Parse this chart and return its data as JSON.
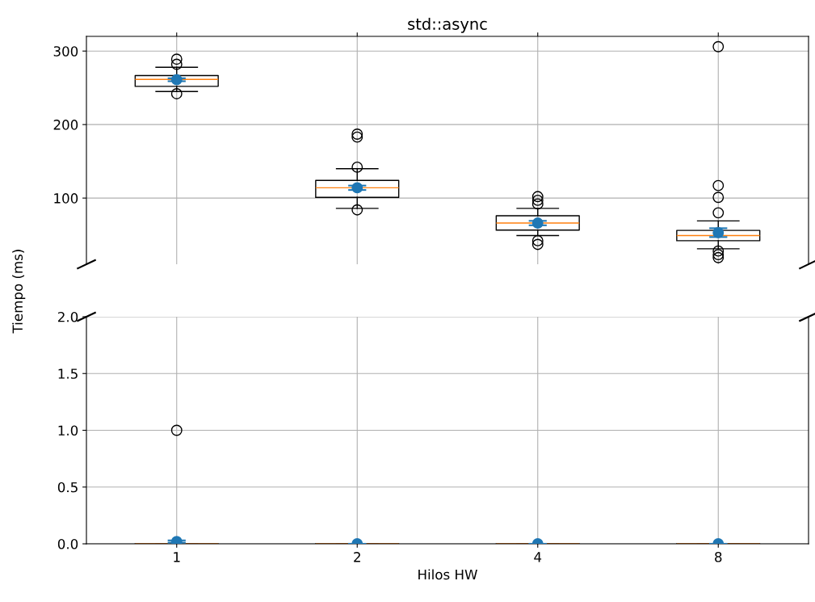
{
  "chart_data": [
    {
      "type": "box",
      "title": "std::async",
      "ylabel": "Tiempo (ms)",
      "categories": [
        "1",
        "2",
        "4",
        "8"
      ],
      "boxes": [
        {
          "low": 245,
          "q1": 252,
          "median": 261.5,
          "q3": 266.7,
          "high": 278,
          "outliers": [
            289,
            282,
            242
          ]
        },
        {
          "low": 86,
          "q1": 101,
          "median": 114,
          "q3": 124,
          "high": 140,
          "outliers": [
            142,
            187,
            183,
            84
          ]
        },
        {
          "low": 49,
          "q1": 56.5,
          "median": 66,
          "q3": 76,
          "high": 86,
          "outliers": [
            102,
            97,
            92,
            42,
            37
          ]
        },
        {
          "low": 31,
          "q1": 42,
          "median": 49,
          "q3": 56,
          "high": 69,
          "outliers": [
            80,
            101,
            117,
            306,
            28,
            23,
            19
          ]
        }
      ],
      "series": [
        {
          "type": "scatter",
          "color": "#1f77b4",
          "x": [
            "1",
            "2",
            "4",
            "8"
          ],
          "values": [
            261,
            114,
            66,
            53
          ],
          "errors": [
            2,
            3,
            3,
            6
          ]
        }
      ],
      "ylim": [
        10,
        320
      ],
      "yticks": [
        100,
        200,
        300
      ],
      "grid": true,
      "marker": "circle",
      "tick_labels": "y"
    },
    {
      "type": "box",
      "xlabel": "Hilos HW",
      "categories": [
        "1",
        "2",
        "4",
        "8"
      ],
      "boxes": [
        {
          "low": 0,
          "q1": 0,
          "median": 0,
          "q3": 0,
          "high": 0,
          "outliers": [
            1.0
          ]
        },
        {
          "low": 0,
          "q1": 0,
          "median": 0,
          "q3": 0,
          "high": 0
        },
        {
          "low": 0,
          "q1": 0,
          "median": 0,
          "q3": 0,
          "high": 0
        },
        {
          "low": 0,
          "q1": 0,
          "median": 0,
          "q3": 0,
          "high": 0
        }
      ],
      "series": [
        {
          "type": "scatter",
          "color": "#1f77b4",
          "x": [
            "1",
            "2",
            "4",
            "8"
          ],
          "values": [
            0.02,
            0,
            0,
            0
          ],
          "errors": [
            0.01,
            0,
            0,
            0
          ]
        }
      ],
      "ylim": [
        0,
        2.0
      ],
      "yticks": [
        {
          "value": 0,
          "label": "0.0"
        },
        0.5,
        {
          "value": 1,
          "label": "1.0"
        },
        1.5,
        {
          "value": 2,
          "label": "2.0"
        }
      ],
      "grid": true,
      "marker": "circle"
    }
  ]
}
